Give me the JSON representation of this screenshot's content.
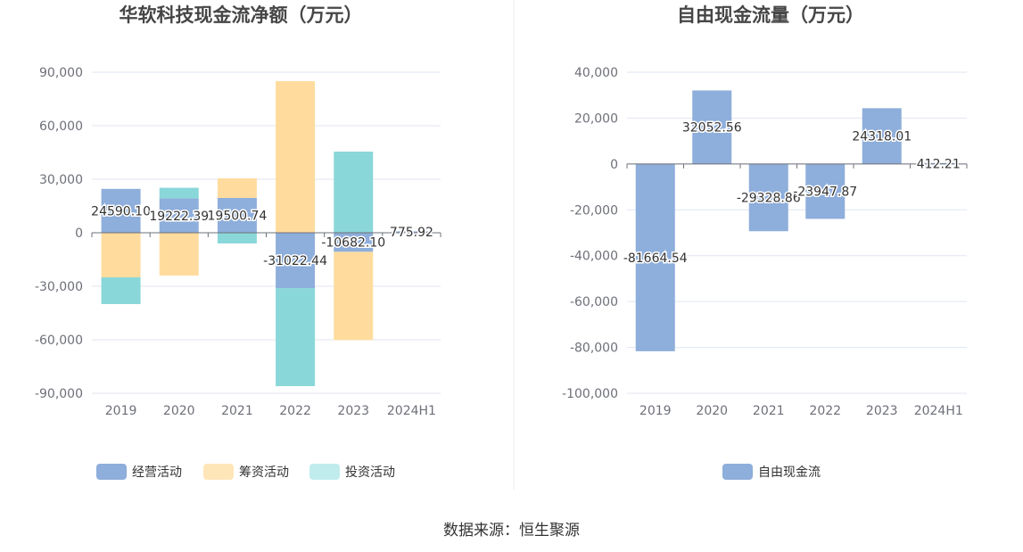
{
  "source_label": "数据来源：恒生聚源",
  "colors": {
    "operating": "#8eaedb",
    "financing": "#ffdc9e",
    "investing": "#8ad7d9",
    "free_cash_flow": "#8eaedb"
  },
  "chart_data": [
    {
      "type": "bar",
      "stacked": true,
      "title": "华软科技现金流净额（万元）",
      "categories": [
        "2019",
        "2020",
        "2021",
        "2022",
        "2023",
        "2024H1"
      ],
      "ylim": [
        -90000,
        90000
      ],
      "yticks": [
        90000,
        60000,
        30000,
        0,
        -30000,
        -60000,
        -90000
      ],
      "ytick_labels": [
        "90,000",
        "60,000",
        "30,000",
        "0",
        "-30,000",
        "-60,000",
        "-90,000"
      ],
      "series": [
        {
          "name": "经营活动",
          "color": "#8eaedb",
          "values": [
            24590.1,
            19222.39,
            19500.74,
            -31022.44,
            -10682.1,
            775.92
          ]
        },
        {
          "name": "筹资活动",
          "color": "#ffdc9e",
          "values": [
            -25000,
            -24000,
            11000,
            85000,
            -49500,
            0
          ]
        },
        {
          "name": "投资活动",
          "color": "#8ad7d9",
          "values": [
            -15000,
            6000,
            -6000,
            -55000,
            45500,
            0
          ]
        }
      ],
      "data_labels": [
        "24590.10",
        "19222.39",
        "19500.74",
        "-31022.44",
        "-10682.10",
        "775.92"
      ],
      "legend": [
        "经营活动",
        "筹资活动",
        "投资活动"
      ],
      "legend_position": "bottom",
      "grid": true
    },
    {
      "type": "bar",
      "title": "自由现金流量（万元）",
      "categories": [
        "2019",
        "2020",
        "2021",
        "2022",
        "2023",
        "2024H1"
      ],
      "ylim": [
        -100000,
        40000
      ],
      "yticks": [
        40000,
        20000,
        0,
        -20000,
        -40000,
        -60000,
        -80000,
        -100000
      ],
      "ytick_labels": [
        "40,000",
        "20,000",
        "0",
        "-20,000",
        "-40,000",
        "-60,000",
        "-80,000",
        "-100,000"
      ],
      "series": [
        {
          "name": "自由现金流",
          "color": "#8eaedb",
          "values": [
            -81664.54,
            32052.56,
            -29328.86,
            -23947.87,
            24318.01,
            412.21
          ]
        }
      ],
      "data_labels": [
        "-81664.54",
        "32052.56",
        "-29328.86",
        "-23947.87",
        "24318.01",
        "412.21"
      ],
      "legend": [
        "自由现金流"
      ],
      "legend_position": "bottom",
      "grid": true
    }
  ]
}
